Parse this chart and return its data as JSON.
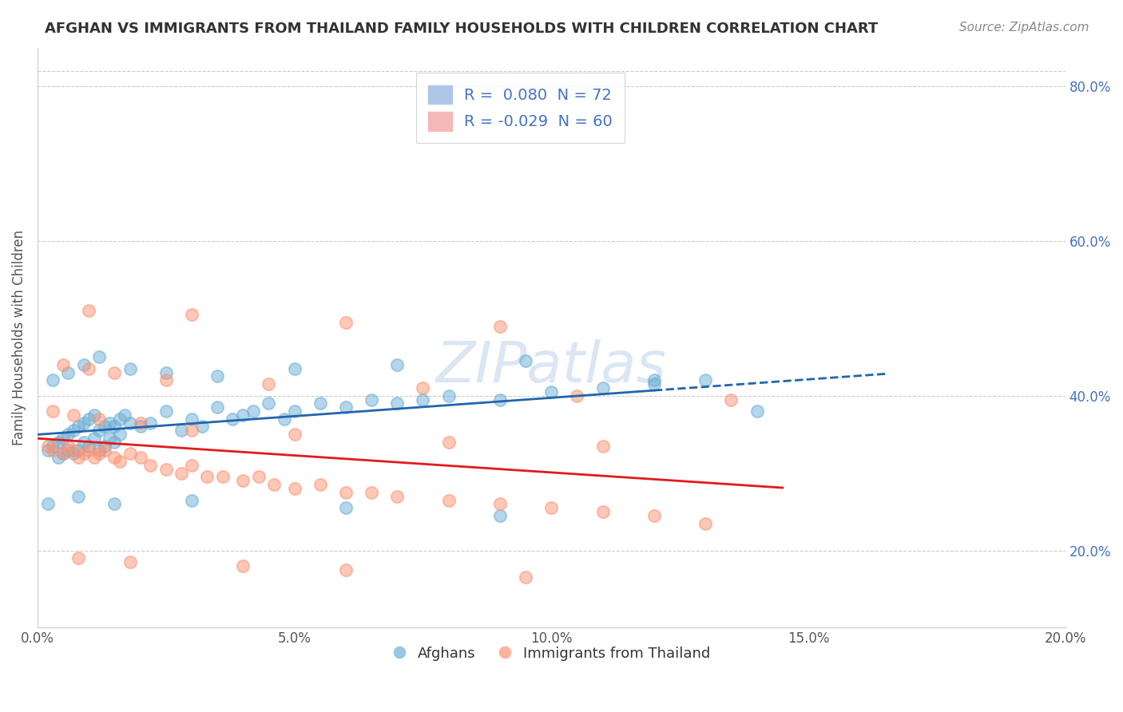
{
  "title": "AFGHAN VS IMMIGRANTS FROM THAILAND FAMILY HOUSEHOLDS WITH CHILDREN CORRELATION CHART",
  "source": "Source: ZipAtlas.com",
  "ylabel": "Family Households with Children",
  "xlim": [
    0.0,
    0.2
  ],
  "ylim": [
    0.1,
    0.85
  ],
  "legend_blue_r": "0.080",
  "legend_blue_n": "72",
  "legend_pink_r": "-0.029",
  "legend_pink_n": "60",
  "blue_color": "#6baed6",
  "pink_color": "#fc9272",
  "blue_line_color": "#2166ac",
  "pink_line_color": "#e31a1c",
  "background_color": "#ffffff",
  "legend_label_blue": "Afghans",
  "legend_label_pink": "Immigrants from Thailand",
  "afghan_x": [
    0.002,
    0.003,
    0.004,
    0.004,
    0.005,
    0.005,
    0.006,
    0.006,
    0.007,
    0.007,
    0.008,
    0.008,
    0.009,
    0.009,
    0.01,
    0.01,
    0.011,
    0.011,
    0.012,
    0.012,
    0.013,
    0.013,
    0.014,
    0.014,
    0.015,
    0.015,
    0.016,
    0.016,
    0.017,
    0.018,
    0.02,
    0.022,
    0.025,
    0.028,
    0.03,
    0.032,
    0.035,
    0.038,
    0.04,
    0.042,
    0.045,
    0.048,
    0.05,
    0.055,
    0.06,
    0.065,
    0.07,
    0.075,
    0.08,
    0.09,
    0.1,
    0.11,
    0.12,
    0.13,
    0.14,
    0.003,
    0.006,
    0.009,
    0.012,
    0.018,
    0.025,
    0.035,
    0.05,
    0.07,
    0.095,
    0.12,
    0.008,
    0.015,
    0.03,
    0.06,
    0.09,
    0.002
  ],
  "afghan_y": [
    0.33,
    0.335,
    0.34,
    0.32,
    0.345,
    0.325,
    0.35,
    0.33,
    0.355,
    0.325,
    0.36,
    0.33,
    0.365,
    0.34,
    0.37,
    0.335,
    0.375,
    0.345,
    0.355,
    0.33,
    0.36,
    0.335,
    0.365,
    0.345,
    0.36,
    0.34,
    0.37,
    0.35,
    0.375,
    0.365,
    0.36,
    0.365,
    0.38,
    0.355,
    0.37,
    0.36,
    0.385,
    0.37,
    0.375,
    0.38,
    0.39,
    0.37,
    0.38,
    0.39,
    0.385,
    0.395,
    0.39,
    0.395,
    0.4,
    0.395,
    0.405,
    0.41,
    0.415,
    0.42,
    0.38,
    0.42,
    0.43,
    0.44,
    0.45,
    0.435,
    0.43,
    0.425,
    0.435,
    0.44,
    0.445,
    0.42,
    0.27,
    0.26,
    0.265,
    0.255,
    0.245,
    0.26
  ],
  "thailand_x": [
    0.002,
    0.003,
    0.005,
    0.006,
    0.007,
    0.008,
    0.009,
    0.01,
    0.011,
    0.012,
    0.013,
    0.015,
    0.016,
    0.018,
    0.02,
    0.022,
    0.025,
    0.028,
    0.03,
    0.033,
    0.036,
    0.04,
    0.043,
    0.046,
    0.05,
    0.055,
    0.06,
    0.065,
    0.07,
    0.08,
    0.09,
    0.1,
    0.11,
    0.12,
    0.13,
    0.003,
    0.007,
    0.012,
    0.02,
    0.03,
    0.05,
    0.08,
    0.11,
    0.005,
    0.01,
    0.015,
    0.025,
    0.045,
    0.075,
    0.105,
    0.135,
    0.008,
    0.018,
    0.04,
    0.06,
    0.095,
    0.01,
    0.03,
    0.06,
    0.09
  ],
  "thailand_y": [
    0.335,
    0.33,
    0.325,
    0.335,
    0.33,
    0.32,
    0.325,
    0.33,
    0.32,
    0.325,
    0.33,
    0.32,
    0.315,
    0.325,
    0.32,
    0.31,
    0.305,
    0.3,
    0.31,
    0.295,
    0.295,
    0.29,
    0.295,
    0.285,
    0.28,
    0.285,
    0.275,
    0.275,
    0.27,
    0.265,
    0.26,
    0.255,
    0.25,
    0.245,
    0.235,
    0.38,
    0.375,
    0.37,
    0.365,
    0.355,
    0.35,
    0.34,
    0.335,
    0.44,
    0.435,
    0.43,
    0.42,
    0.415,
    0.41,
    0.4,
    0.395,
    0.19,
    0.185,
    0.18,
    0.175,
    0.165,
    0.51,
    0.505,
    0.495,
    0.49
  ]
}
